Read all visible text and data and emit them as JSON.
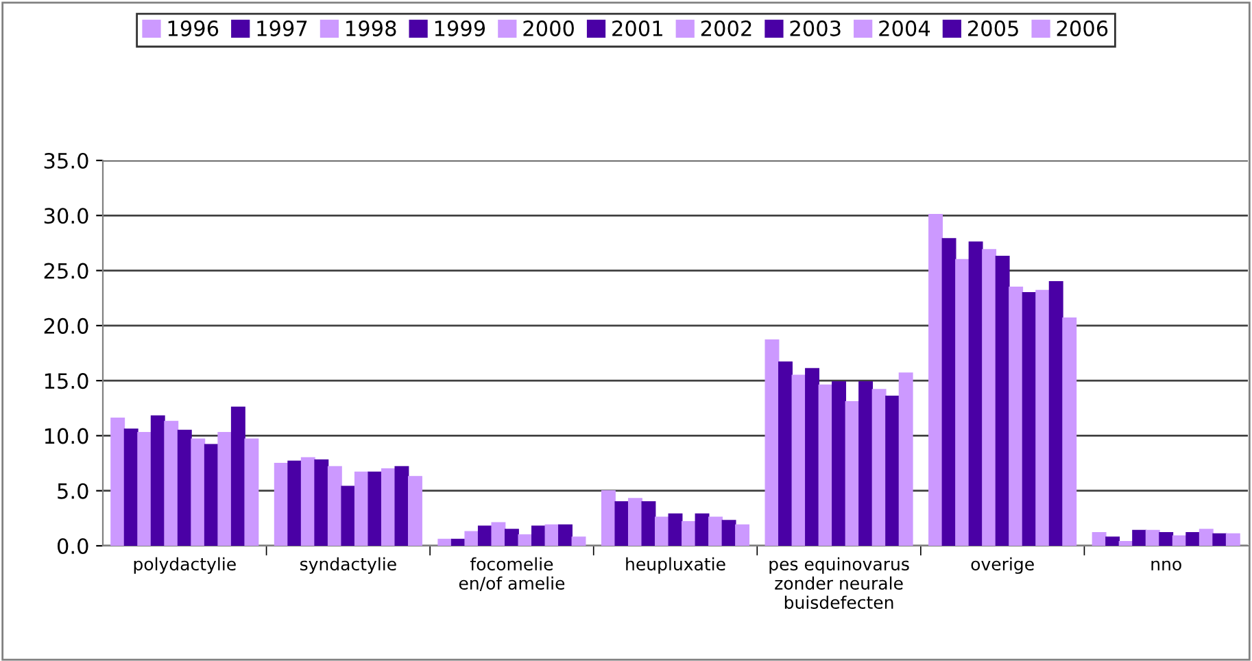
{
  "chart_data": {
    "type": "bar",
    "categories": [
      "polydactylie",
      "syndactylie",
      "focomelie\nen/of amelie",
      "heupluxatie",
      "pes equinovarus\nzonder neurale\nbuisdefecten",
      "overige",
      "nno"
    ],
    "series": [
      {
        "name": "1996",
        "color": "#cc99ff",
        "values": [
          11.6,
          7.5,
          0.6,
          5.0,
          18.7,
          30.1,
          1.2
        ]
      },
      {
        "name": "1997",
        "color": "#4a00a5",
        "values": [
          10.6,
          7.7,
          0.6,
          4.0,
          16.7,
          27.9,
          0.8
        ]
      },
      {
        "name": "1998",
        "color": "#cc99ff",
        "values": [
          10.3,
          8.0,
          1.3,
          4.3,
          15.5,
          26.0,
          0.4
        ]
      },
      {
        "name": "1999",
        "color": "#4a00a5",
        "values": [
          11.8,
          7.8,
          1.8,
          4.0,
          16.1,
          27.6,
          1.4
        ]
      },
      {
        "name": "2000",
        "color": "#cc99ff",
        "values": [
          11.3,
          7.2,
          2.1,
          2.6,
          14.6,
          26.9,
          1.4
        ]
      },
      {
        "name": "2001",
        "color": "#4a00a5",
        "values": [
          10.5,
          5.4,
          1.5,
          2.9,
          14.9,
          26.3,
          1.2
        ]
      },
      {
        "name": "2002",
        "color": "#cc99ff",
        "values": [
          9.7,
          6.7,
          1.0,
          2.2,
          13.1,
          23.5,
          0.9
        ]
      },
      {
        "name": "2003",
        "color": "#4a00a5",
        "values": [
          9.2,
          6.7,
          1.8,
          2.9,
          14.9,
          23.0,
          1.2
        ]
      },
      {
        "name": "2004",
        "color": "#cc99ff",
        "values": [
          10.3,
          7.0,
          1.9,
          2.6,
          14.2,
          23.2,
          1.5
        ]
      },
      {
        "name": "2005",
        "color": "#4a00a5",
        "values": [
          12.6,
          7.2,
          1.9,
          2.3,
          13.6,
          24.0,
          1.1
        ]
      },
      {
        "name": "2006",
        "color": "#cc99ff",
        "values": [
          9.7,
          6.3,
          0.8,
          1.9,
          15.7,
          20.7,
          1.1
        ]
      }
    ],
    "ylim": [
      0,
      35
    ],
    "yticks": [
      {
        "value": 0,
        "label": "0.0"
      },
      {
        "value": 5,
        "label": "5.0"
      },
      {
        "value": 10,
        "label": "10.0"
      },
      {
        "value": 15,
        "label": "15.0"
      },
      {
        "value": 20,
        "label": "20.0"
      },
      {
        "value": 25,
        "label": "25.0"
      },
      {
        "value": 30,
        "label": "30.0"
      },
      {
        "value": 35,
        "label": "35.0"
      }
    ],
    "grid": "y",
    "legend": "top"
  }
}
